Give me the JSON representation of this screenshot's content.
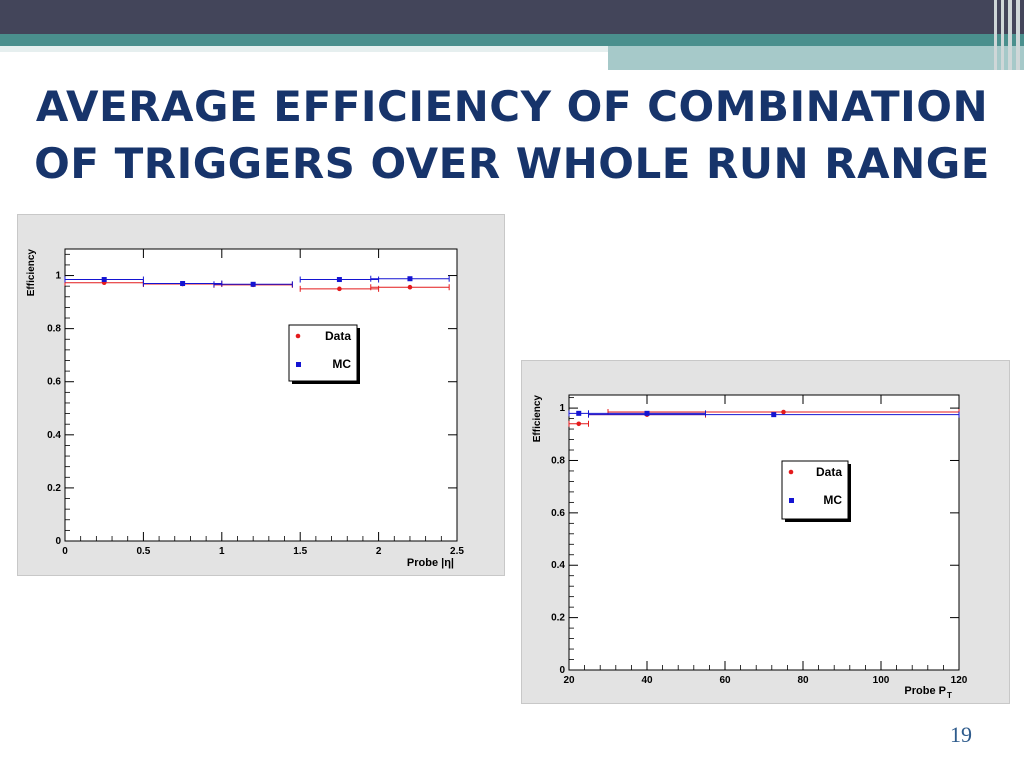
{
  "slide": {
    "title_line1": "AVERAGE EFFICIENCY OF COMBINATION",
    "title_line2": "OF TRIGGERS OVER WHOLE RUN RANGE",
    "page_number": "19"
  },
  "colors": {
    "title": "#17346b",
    "data": "#e41a1c",
    "mc": "#1414d2",
    "header_dark": "#43455a",
    "header_teal": "#4a8f8d"
  },
  "chart_data": [
    {
      "type": "scatter",
      "ylabel": "Efficiency",
      "xlabel": "Probe |η|",
      "xlim": [
        0,
        2.5
      ],
      "ylim": [
        0,
        1.1
      ],
      "xticks": [
        "0",
        "0.5",
        "1",
        "1.5",
        "2",
        "2.5"
      ],
      "yticks": [
        "0",
        "0.2",
        "0.4",
        "0.6",
        "0.8",
        "1"
      ],
      "legend": {
        "placement": "center-right",
        "entries": [
          "Data",
          "MC"
        ]
      },
      "series": [
        {
          "name": "Data",
          "color": "#e41a1c",
          "marker": "circle",
          "x": [
            0.25,
            0.75,
            1.2,
            1.75,
            2.2
          ],
          "xerr": [
            0.25,
            0.25,
            0.25,
            0.25,
            0.25
          ],
          "y": [
            0.973,
            0.968,
            0.965,
            0.95,
            0.956
          ]
        },
        {
          "name": "MC",
          "color": "#1414d2",
          "marker": "square",
          "x": [
            0.25,
            0.75,
            1.2,
            1.75,
            2.2
          ],
          "xerr": [
            0.25,
            0.25,
            0.25,
            0.25,
            0.25
          ],
          "y": [
            0.985,
            0.97,
            0.967,
            0.985,
            0.988
          ]
        }
      ]
    },
    {
      "type": "scatter",
      "ylabel": "Efficiency",
      "xlabel": "Probe P",
      "xlabel_sub": "T",
      "xlim": [
        20,
        120
      ],
      "ylim": [
        0,
        1.05
      ],
      "xticks": [
        "20",
        "40",
        "60",
        "80",
        "100",
        "120"
      ],
      "yticks": [
        "0",
        "0.2",
        "0.4",
        "0.6",
        "0.8",
        "1"
      ],
      "legend": {
        "placement": "center-right",
        "entries": [
          "Data",
          "MC"
        ]
      },
      "series": [
        {
          "name": "Data",
          "color": "#e41a1c",
          "marker": "circle",
          "x": [
            22.5,
            40,
            75
          ],
          "xerr": [
            2.5,
            15,
            45
          ],
          "y": [
            0.94,
            0.975,
            0.985
          ]
        },
        {
          "name": "MC",
          "color": "#1414d2",
          "marker": "square",
          "x": [
            22.5,
            40,
            72.5
          ],
          "xerr": [
            2.5,
            15,
            47.5
          ],
          "y": [
            0.98,
            0.98,
            0.975
          ]
        }
      ]
    }
  ]
}
